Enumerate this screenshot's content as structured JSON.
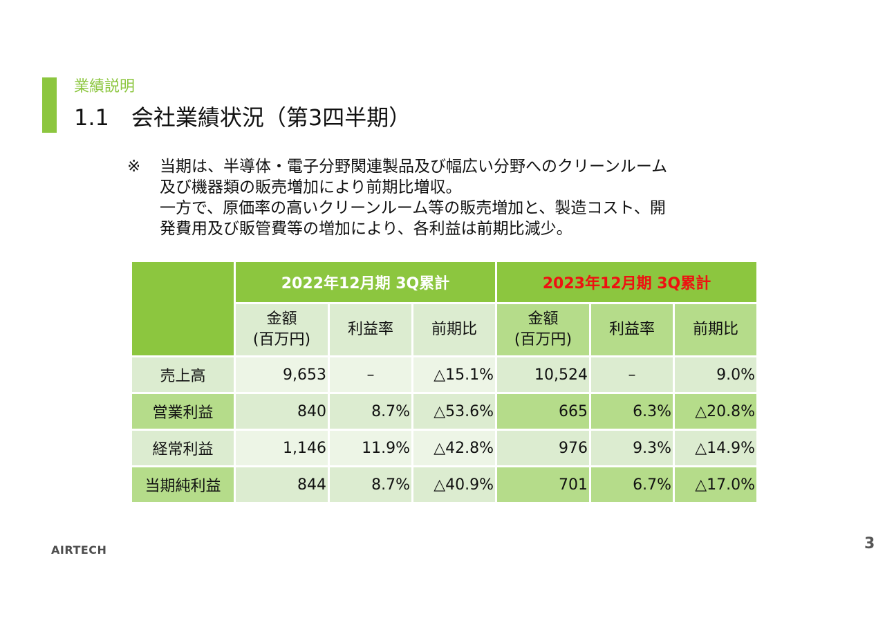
{
  "header": {
    "section_label": "業績説明",
    "title": "1.1　会社業績状況（第3四半期）"
  },
  "note": {
    "mark": "※",
    "lines": [
      "当期は、半導体・電子分野関連製品及び幅広い分野へのクリーンルーム",
      "及び機器類の販売増加により前期比増収。",
      "一方で、原価率の高いクリーンルーム等の販売増加と、製造コスト、開",
      "発費用及び販管費等の増加により、各利益は前期比減少。"
    ]
  },
  "table": {
    "period_2022": "2022年12月期 3Q累計",
    "period_2023": "2023年12月期 3Q累計",
    "col_amount_1": "金額",
    "col_amount_2": "(百万円)",
    "col_margin": "利益率",
    "col_yoy": "前期比",
    "rows": [
      {
        "label": "売上高",
        "amt22": "9,653",
        "mgn22": "–",
        "yoy22": "△15.1%",
        "amt23": "10,524",
        "mgn23": "–",
        "yoy23": "9.0%"
      },
      {
        "label": "営業利益",
        "amt22": "840",
        "mgn22": "8.7%",
        "yoy22": "△53.6%",
        "amt23": "665",
        "mgn23": "6.3%",
        "yoy23": "△20.8%"
      },
      {
        "label": "経常利益",
        "amt22": "1,146",
        "mgn22": "11.9%",
        "yoy22": "△42.8%",
        "amt23": "976",
        "mgn23": "9.3%",
        "yoy23": "△14.9%"
      },
      {
        "label": "当期純利益",
        "amt22": "844",
        "mgn22": "8.7%",
        "yoy22": "△40.9%",
        "amt23": "701",
        "mgn23": "6.7%",
        "yoy23": "△17.0%"
      }
    ]
  },
  "footer": {
    "logo": "AIRTECH",
    "page_number": "3"
  },
  "colors": {
    "accent_green": "#8cc63f",
    "highlight_red": "#ee1111",
    "row_light": "#dcecd0",
    "row_medium": "#b5dc8a"
  }
}
